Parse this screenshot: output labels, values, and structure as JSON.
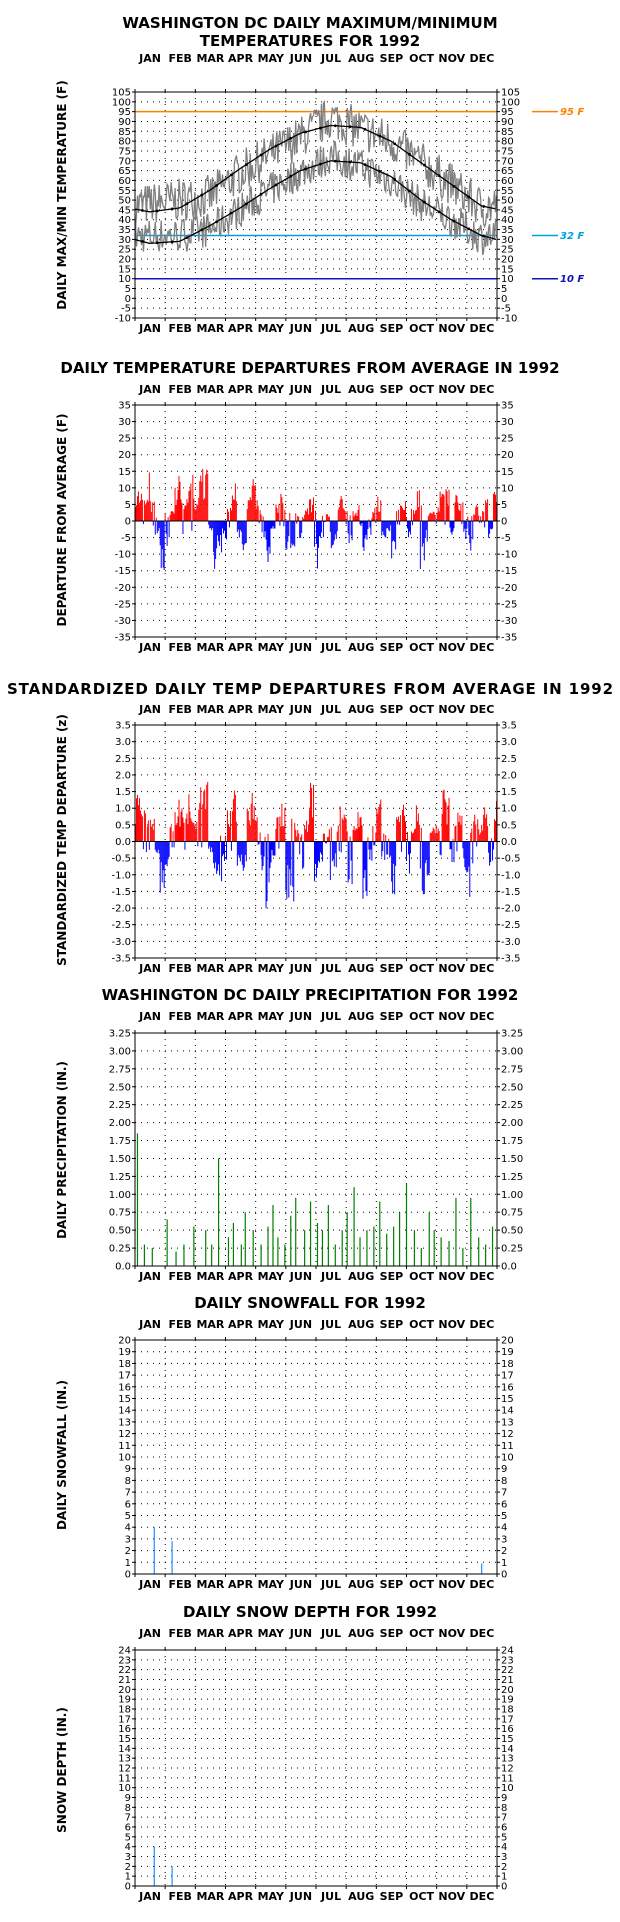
{
  "months": [
    "JAN",
    "FEB",
    "MAR",
    "APR",
    "MAY",
    "JUN",
    "JUL",
    "AUG",
    "SEP",
    "OCT",
    "NOV",
    "DEC"
  ],
  "colors": {
    "temp_series": "#808080",
    "normal_lines": "#000000",
    "ref_95": "#ff8000",
    "ref_32": "#00a0e0",
    "ref_10": "#1010c0",
    "above": "#ff0000",
    "below": "#0000ff",
    "precip": "#008000",
    "snow": "#1e90ff"
  },
  "chart_data": [
    {
      "type": "line",
      "title_line1": "WASHINGTON DC DAILY MAXIMUM/MINIMUM",
      "title_line2": "TEMPERATURES FOR 1992",
      "ylabel": "DAILY MAX/MIN TEMPERATURE (F)",
      "ylim": [
        -10,
        105
      ],
      "yticks": [
        "105",
        "100",
        "95",
        "90",
        "85",
        "80",
        "75",
        "70",
        "65",
        "60",
        "55",
        "50",
        "45",
        "40",
        "35",
        "30",
        "25",
        "20",
        "15",
        "10",
        "5",
        "0",
        "-5",
        "-10"
      ],
      "reference_lines": [
        {
          "value": 95,
          "label": "95 F",
          "color": "#ff8000"
        },
        {
          "value": 32,
          "label": "32 F",
          "color": "#00a0e0"
        },
        {
          "value": 10,
          "label": "10 F",
          "color": "#1010c0"
        }
      ],
      "normal_high": [
        44,
        46,
        55,
        66,
        76,
        84,
        88,
        87,
        80,
        69,
        58,
        47
      ],
      "normal_low": [
        28,
        29,
        37,
        46,
        56,
        65,
        70,
        69,
        62,
        50,
        40,
        32
      ],
      "series": [
        {
          "name": "max",
          "values": [
            48,
            50,
            52,
            64,
            73,
            82,
            92,
            86,
            80,
            69,
            58,
            46
          ]
        },
        {
          "name": "min",
          "values": [
            32,
            32,
            35,
            45,
            55,
            64,
            72,
            67,
            60,
            48,
            40,
            31
          ]
        }
      ]
    },
    {
      "type": "bar",
      "title": "DAILY TEMPERATURE DEPARTURES FROM AVERAGE IN 1992",
      "ylabel": "DEPARTURE FROM AVERAGE (F)",
      "ylim": [
        -35,
        35
      ],
      "yticks": [
        "35",
        "30",
        "25",
        "20",
        "15",
        "10",
        "5",
        "0",
        "-5",
        "-10",
        "-15",
        "-20",
        "-25",
        "-30",
        "-35"
      ],
      "values": [
        12,
        8,
        14,
        6,
        -4,
        -15,
        -8,
        5,
        10,
        13,
        7,
        14,
        9,
        15,
        17,
        -3,
        -14,
        -10,
        -6,
        8,
        12,
        -5,
        -9,
        10,
        14,
        6,
        -7,
        -12,
        -4,
        5,
        9,
        -10,
        -8,
        3,
        -6,
        4,
        7,
        -14,
        -5,
        2,
        -9,
        -6,
        8,
        5,
        -8,
        3,
        6,
        -9,
        -4,
        4,
        7,
        -5,
        -3,
        -11,
        5,
        8,
        -6,
        4,
        9,
        -16,
        -7,
        3,
        4,
        14,
        10,
        -4,
        8,
        6,
        -6,
        -12,
        5,
        3,
        7,
        -5,
        9
      ]
    },
    {
      "type": "bar",
      "title": "STANDARDIZED DAILY TEMP DEPARTURES FROM AVERAGE IN 1992",
      "ylabel": "STANDARDIZED TEMP DEPARTURE (z)",
      "ylim": [
        -3.5,
        3.5
      ],
      "yticks": [
        "3.5",
        "3.0",
        "2.5",
        "2.0",
        "1.5",
        "1.0",
        "0.5",
        "0.0",
        "-0.5",
        "-1.0",
        "-1.5",
        "-2.0",
        "-2.5",
        "-3.0",
        "-3.5"
      ],
      "values": [
        1.4,
        0.9,
        1.3,
        0.7,
        -0.5,
        -1.5,
        -0.8,
        0.6,
        1.0,
        1.2,
        0.8,
        1.4,
        1.0,
        1.6,
        1.9,
        -0.4,
        -1.6,
        -1.2,
        -0.8,
        1.0,
        1.5,
        -0.7,
        -1.1,
        1.2,
        1.6,
        0.7,
        -0.9,
        -2.0,
        -0.6,
        0.8,
        1.2,
        -1.7,
        -2.4,
        0.4,
        -0.9,
        0.6,
        1.9,
        -1.6,
        -0.8,
        0.3,
        -1.5,
        -1.0,
        1.1,
        0.8,
        -1.3,
        0.5,
        0.9,
        -2.3,
        -0.6,
        0.6,
        1.2,
        -0.8,
        -0.5,
        -1.8,
        0.8,
        1.1,
        -1.0,
        0.6,
        1.3,
        -2.2,
        -1.1,
        0.4,
        0.6,
        1.7,
        1.4,
        -0.6,
        1.2,
        0.9,
        -0.9,
        -1.6,
        0.8,
        0.5,
        1.0,
        -0.7,
        1.2
      ]
    },
    {
      "type": "bar",
      "title": "WASHINGTON DC DAILY PRECIPITATION FOR 1992",
      "ylabel": "DAILY PRECIPITATION (IN.)",
      "ylim": [
        0,
        3.25
      ],
      "yticks": [
        "3.25",
        "3.00",
        "2.75",
        "2.50",
        "2.25",
        "2.00",
        "1.75",
        "1.50",
        "1.25",
        "1.00",
        "0.75",
        "0.50",
        "0.25",
        "0.0"
      ],
      "events": [
        {
          "day": 3,
          "value": 1.85
        },
        {
          "day": 10,
          "value": 0.3
        },
        {
          "day": 18,
          "value": 0.25
        },
        {
          "day": 33,
          "value": 0.65
        },
        {
          "day": 42,
          "value": 0.2
        },
        {
          "day": 50,
          "value": 0.3
        },
        {
          "day": 60,
          "value": 0.55
        },
        {
          "day": 72,
          "value": 0.5
        },
        {
          "day": 78,
          "value": 0.3
        },
        {
          "day": 85,
          "value": 1.5
        },
        {
          "day": 95,
          "value": 0.4
        },
        {
          "day": 100,
          "value": 0.6
        },
        {
          "day": 108,
          "value": 0.3
        },
        {
          "day": 112,
          "value": 0.75
        },
        {
          "day": 120,
          "value": 0.5
        },
        {
          "day": 128,
          "value": 0.3
        },
        {
          "day": 135,
          "value": 0.55
        },
        {
          "day": 140,
          "value": 0.85
        },
        {
          "day": 145,
          "value": 0.4
        },
        {
          "day": 152,
          "value": 0.3
        },
        {
          "day": 158,
          "value": 0.7
        },
        {
          "day": 163,
          "value": 0.95
        },
        {
          "day": 172,
          "value": 0.5
        },
        {
          "day": 178,
          "value": 0.9
        },
        {
          "day": 185,
          "value": 0.6
        },
        {
          "day": 190,
          "value": 0.5
        },
        {
          "day": 196,
          "value": 0.85
        },
        {
          "day": 203,
          "value": 0.3
        },
        {
          "day": 210,
          "value": 0.5
        },
        {
          "day": 215,
          "value": 0.75
        },
        {
          "day": 222,
          "value": 1.1
        },
        {
          "day": 228,
          "value": 0.4
        },
        {
          "day": 235,
          "value": 0.5
        },
        {
          "day": 242,
          "value": 0.55
        },
        {
          "day": 248,
          "value": 0.9
        },
        {
          "day": 255,
          "value": 0.45
        },
        {
          "day": 262,
          "value": 0.55
        },
        {
          "day": 268,
          "value": 0.75
        },
        {
          "day": 275,
          "value": 1.15
        },
        {
          "day": 283,
          "value": 0.5
        },
        {
          "day": 290,
          "value": 0.25
        },
        {
          "day": 298,
          "value": 0.75
        },
        {
          "day": 303,
          "value": 0.5
        },
        {
          "day": 310,
          "value": 0.4
        },
        {
          "day": 318,
          "value": 0.35
        },
        {
          "day": 325,
          "value": 0.95
        },
        {
          "day": 332,
          "value": 0.25
        },
        {
          "day": 340,
          "value": 0.95
        },
        {
          "day": 348,
          "value": 0.4
        },
        {
          "day": 355,
          "value": 0.3
        },
        {
          "day": 362,
          "value": 0.55
        }
      ]
    },
    {
      "type": "bar",
      "title": "DAILY SNOWFALL FOR 1992",
      "ylabel": "DAILY SNOWFALL (IN.)",
      "ylim": [
        0,
        20
      ],
      "yticks": [
        "20",
        "19",
        "18",
        "17",
        "16",
        "15",
        "14",
        "13",
        "12",
        "11",
        "10",
        "9",
        "8",
        "7",
        "6",
        "5",
        "4",
        "3",
        "2",
        "1",
        "0"
      ],
      "events": [
        {
          "day": 20,
          "value": 4.0
        },
        {
          "day": 38,
          "value": 2.8
        },
        {
          "day": 351,
          "value": 0.9
        }
      ]
    },
    {
      "type": "bar",
      "title": "DAILY SNOW DEPTH FOR 1992",
      "ylabel": "SNOW DEPTH (IN.)",
      "ylim": [
        0,
        24
      ],
      "yticks": [
        "24",
        "23",
        "22",
        "21",
        "20",
        "19",
        "18",
        "17",
        "16",
        "15",
        "14",
        "13",
        "12",
        "11",
        "10",
        "9",
        "8",
        "7",
        "6",
        "5",
        "4",
        "3",
        "2",
        "1",
        "0"
      ],
      "events": [
        {
          "day": 20,
          "value": 4
        },
        {
          "day": 38,
          "value": 2
        }
      ]
    }
  ]
}
